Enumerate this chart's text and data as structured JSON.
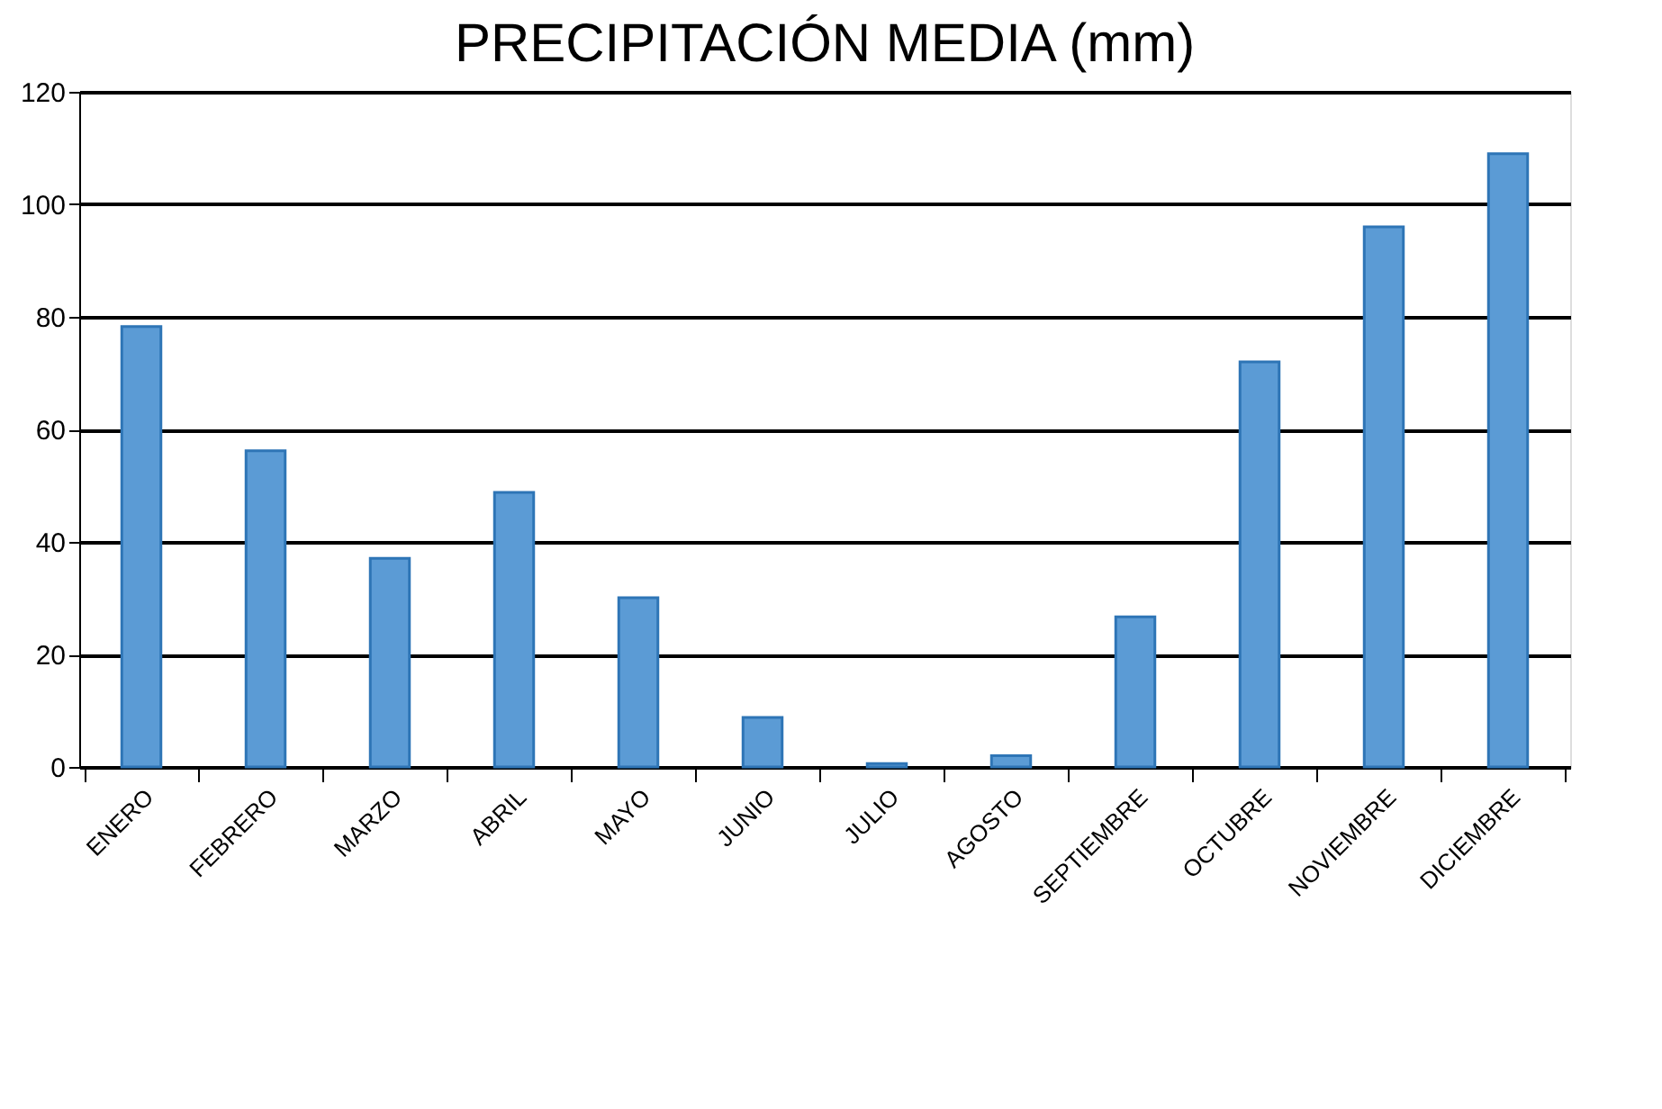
{
  "chart_data": {
    "type": "bar",
    "title": "PRECIPITACIÓN MEDIA (mm)",
    "categories": [
      "ENERO",
      "FEBRERO",
      "MARZO",
      "ABRIL",
      "MAYO",
      "JUNIO",
      "JULIO",
      "AGOSTO",
      "SEPTIEMBRE",
      "OCTUBRE",
      "NOVIEMBRE",
      "DICIEMBRE"
    ],
    "values": [
      78.3,
      56.2,
      37.1,
      48.8,
      30.1,
      8.8,
      0.6,
      2.0,
      26.7,
      72,
      96,
      109
    ],
    "color": "#5b9bd5",
    "ylim": [
      0,
      120
    ],
    "yticks": [
      0,
      20,
      40,
      60,
      80,
      100,
      120
    ],
    "grid": "y"
  }
}
